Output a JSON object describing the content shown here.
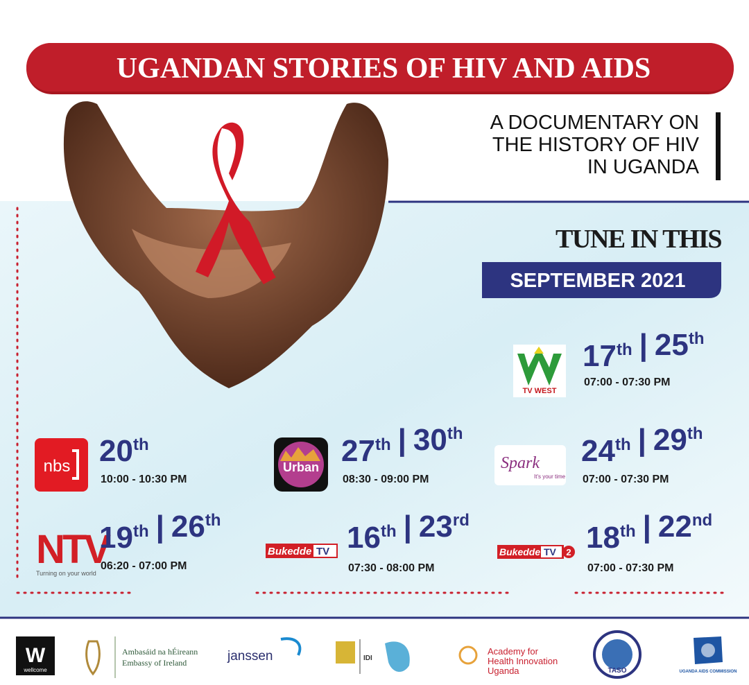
{
  "header": {
    "title": "UGANDAN STORIES OF HIV AND AIDS",
    "subtitle_lines": [
      "A DOCUMENTARY ON",
      "THE HISTORY OF HIV",
      "IN UGANDA"
    ]
  },
  "tune_in": {
    "text": "TUNE IN THIS",
    "month": "SEPTEMBER 2021"
  },
  "separator": "|",
  "schedule": [
    {
      "logo": [
        "TV WEST"
      ],
      "dates": [
        {
          "day": "17",
          "suffix": "th"
        },
        {
          "day": "25",
          "suffix": "th"
        }
      ],
      "time": "07:00 - 07:30 PM"
    },
    {
      "logo": [
        "nbs"
      ],
      "dates": [
        {
          "day": "20",
          "suffix": "th"
        }
      ],
      "time": "10:00 - 10:30 PM"
    },
    {
      "logo": [
        "Urban"
      ],
      "dates": [
        {
          "day": "27",
          "suffix": "th"
        },
        {
          "day": "30",
          "suffix": "th"
        }
      ],
      "time": "08:30 - 09:00 PM"
    },
    {
      "logo": [
        "Spark",
        "It's your time"
      ],
      "dates": [
        {
          "day": "24",
          "suffix": "th"
        },
        {
          "day": "29",
          "suffix": "th"
        }
      ],
      "time": "07:00 - 07:30 PM"
    },
    {
      "logo": [
        "NTV",
        "Turning on your world"
      ],
      "dates": [
        {
          "day": "19",
          "suffix": "th"
        },
        {
          "day": "26",
          "suffix": "th"
        }
      ],
      "time": "06:20 - 07:00 PM"
    },
    {
      "logo": [
        "Bukedde",
        "TV"
      ],
      "dates": [
        {
          "day": "16",
          "suffix": "th"
        },
        {
          "day": "23",
          "suffix": "rd"
        }
      ],
      "time": "07:30 - 08:00 PM"
    },
    {
      "logo": [
        "Bukedde",
        "TV",
        "2"
      ],
      "dates": [
        {
          "day": "18",
          "suffix": "th"
        },
        {
          "day": "22",
          "suffix": "nd"
        }
      ],
      "time": "07:00 - 07:30 PM"
    }
  ],
  "footer": {
    "wellcome": [
      "W",
      "wellcome"
    ],
    "ireland": [
      "Ambasáid na hÉireann",
      "Embassy of Ireland"
    ],
    "janssen": "janssen",
    "idi": "IDI",
    "academy": [
      "Academy for",
      "Health Innovation",
      "Uganda"
    ],
    "taso": "TASO",
    "uac": "UGANDA AIDS COMMISSION"
  }
}
